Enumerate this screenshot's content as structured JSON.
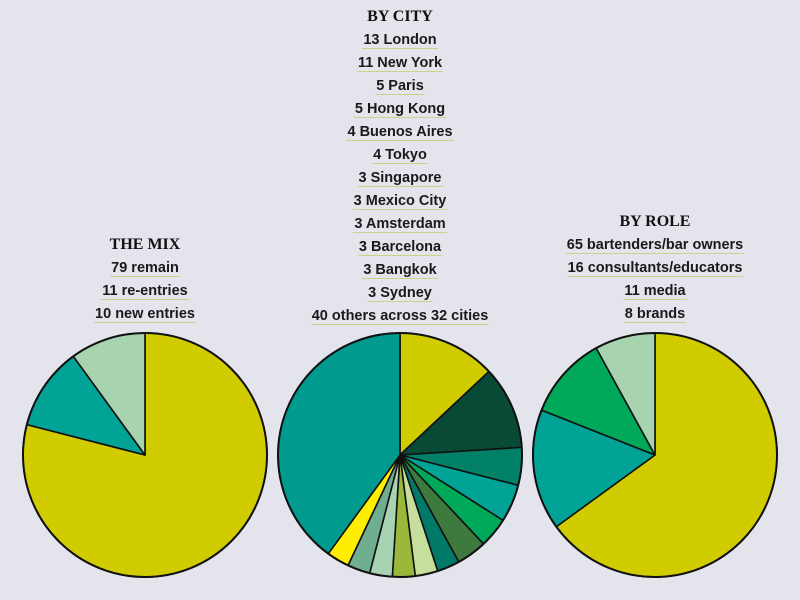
{
  "chart_data": [
    {
      "type": "pie",
      "title": "THE MIX",
      "labels": [
        "79 remain",
        "11 re-entries",
        "10 new entries"
      ],
      "values": [
        79,
        11,
        10
      ],
      "colors": [
        "#d1cc00",
        "#00a395",
        "#a7d3ae"
      ]
    },
    {
      "type": "pie",
      "title": "BY CITY",
      "labels": [
        "13 London",
        "11 New York",
        "5 Paris",
        "5 Hong Kong",
        "4 Buenos Aires",
        "4 Tokyo",
        "3 Singapore",
        "3 Mexico City",
        "3 Amsterdam",
        "3 Barcelona",
        "3 Bangkok",
        "3 Sydney",
        "40 others across 32 cities"
      ],
      "values": [
        13,
        11,
        5,
        5,
        4,
        4,
        3,
        3,
        3,
        3,
        3,
        3,
        40
      ],
      "colors": [
        "#d1cc00",
        "#084a35",
        "#008066",
        "#00a395",
        "#00a85a",
        "#3e7a3e",
        "#007a66",
        "#c7df9d",
        "#99b83a",
        "#a8d3b3",
        "#6fae8e",
        "#ffee00",
        "#009a8e"
      ]
    },
    {
      "type": "pie",
      "title": "BY ROLE",
      "labels": [
        "65 bartenders/bar owners",
        "16 consultants/educators",
        "11 media",
        "8 brands"
      ],
      "values": [
        65,
        16,
        11,
        8
      ],
      "colors": [
        "#d1cc00",
        "#00a395",
        "#00a85a",
        "#a7d3ae"
      ]
    }
  ]
}
